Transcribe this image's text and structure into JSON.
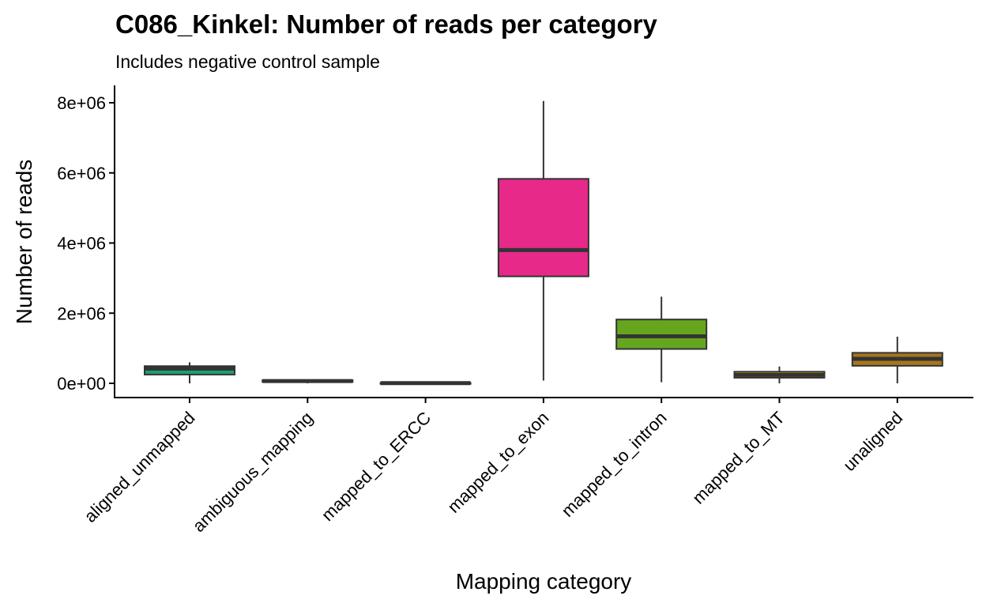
{
  "chart_data": {
    "type": "boxplot",
    "title": "C086_Kinkel: Number of reads per category",
    "subtitle": "Includes negative control sample",
    "xlabel": "Mapping category",
    "ylabel": "Number of reads",
    "ylim": [
      -400000,
      8500000
    ],
    "y_ticks": [
      {
        "value": 0,
        "label": "0e+00"
      },
      {
        "value": 2000000,
        "label": "2e+06"
      },
      {
        "value": 4000000,
        "label": "4e+06"
      },
      {
        "value": 6000000,
        "label": "6e+06"
      },
      {
        "value": 8000000,
        "label": "8e+06"
      }
    ],
    "grid": false,
    "legend": "none",
    "categories": [
      "aligned_unmapped",
      "ambiguous_mapping",
      "mapped_to_ERCC",
      "mapped_to_exon",
      "mapped_to_intron",
      "mapped_to_MT",
      "unaligned"
    ],
    "boxes": [
      {
        "category": "aligned_unmapped",
        "min": 0,
        "q1": 250000,
        "median": 420000,
        "q3": 490000,
        "max": 600000,
        "color": "#1B9E77"
      },
      {
        "category": "ambiguous_mapping",
        "min": 0,
        "q1": 40000,
        "median": 65000,
        "q3": 90000,
        "max": 110000,
        "color": "#D95F02"
      },
      {
        "category": "mapped_to_ERCC",
        "min": 0,
        "q1": 0,
        "median": 5000,
        "q3": 10000,
        "max": 15000,
        "color": "#7570B3"
      },
      {
        "category": "mapped_to_exon",
        "min": 80000,
        "q1": 3050000,
        "median": 3800000,
        "q3": 5830000,
        "max": 8050000,
        "color": "#E7298A"
      },
      {
        "category": "mapped_to_intron",
        "min": 30000,
        "q1": 980000,
        "median": 1340000,
        "q3": 1820000,
        "max": 2470000,
        "color": "#66A61E"
      },
      {
        "category": "mapped_to_MT",
        "min": 0,
        "q1": 160000,
        "median": 240000,
        "q3": 330000,
        "max": 480000,
        "color": "#E6AB02"
      },
      {
        "category": "unaligned",
        "min": 0,
        "q1": 500000,
        "median": 700000,
        "q3": 870000,
        "max": 1330000,
        "color": "#A6761D"
      }
    ]
  }
}
